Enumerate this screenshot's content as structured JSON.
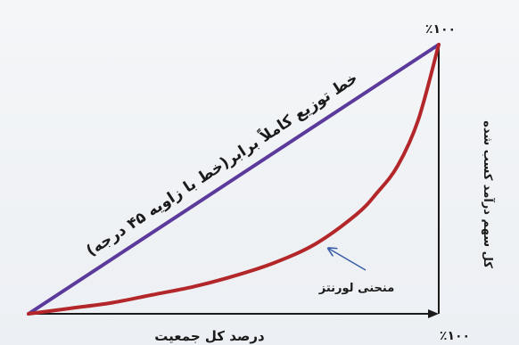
{
  "chart_data": {
    "type": "line",
    "xlabel": "درصد کل جمعیت",
    "ylabel": "کل سهم درآمد کسب شده",
    "x_max_label": "٪۱۰۰",
    "y_max_label": "٪۱۰۰",
    "xlim": [
      0,
      100
    ],
    "ylim": [
      0,
      100
    ],
    "series": [
      {
        "name": "خط توزیع کاملاً برابر(خط با زاویه ۴۵ درجه)",
        "x": [
          0,
          100
        ],
        "y": [
          0,
          100
        ]
      },
      {
        "name": "منحنی لورنتز",
        "x": [
          0,
          10,
          20,
          30,
          40,
          50,
          60,
          70,
          80,
          85,
          90,
          95,
          100
        ],
        "y": [
          0,
          2,
          4,
          7,
          10,
          14,
          19,
          26,
          37,
          45,
          55,
          72,
          100
        ]
      }
    ],
    "annotations": [
      {
        "text": "منحنی لورنتز",
        "target_series": 1
      }
    ],
    "colors": {
      "equality_line": "#5b3a9c",
      "lorenz_curve": "#b3262a",
      "axes": "#1a1a1a",
      "arrow": "#3a5fa8"
    },
    "grid": false,
    "legend": "none"
  }
}
